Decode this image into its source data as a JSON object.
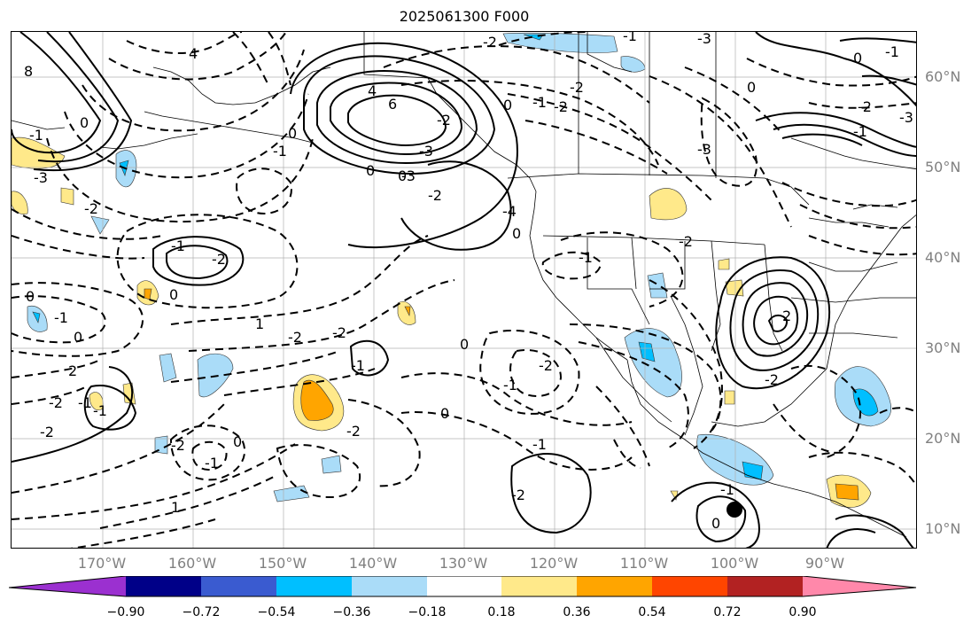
{
  "title": "2025061300 F000",
  "lat_labels": [
    "60°N",
    "50°N",
    "40°N",
    "30°N",
    "20°N",
    "10°N"
  ],
  "lon_labels": [
    "170°W",
    "160°W",
    "150°W",
    "140°W",
    "130°W",
    "120°W",
    "110°W",
    "100°W",
    "90°W"
  ],
  "colorbar": {
    "ticks": [
      "−0.90",
      "−0.72",
      "−0.54",
      "−0.36",
      "−0.18",
      "0.18",
      "0.36",
      "0.54",
      "0.72",
      "0.90"
    ],
    "colors": [
      "#9b30d0",
      "#000088",
      "#3a5bd0",
      "#00bfff",
      "#aadcf8",
      "#ffffff",
      "#ffe98a",
      "#ffa500",
      "#ff4500",
      "#b22222",
      "#ff88aa"
    ],
    "extend": "both"
  },
  "contour_labels": [
    "-2",
    "-3",
    "0",
    "-1",
    "-2",
    "-3",
    "4",
    "6",
    "0",
    "-1",
    "-2",
    "0",
    "-2",
    "-3",
    "-3",
    "4",
    "-1",
    "0",
    "8",
    "-2",
    "-1",
    "-3",
    "-2",
    "-4",
    "-1",
    "0",
    "-3",
    "0",
    "0",
    "-1",
    "-2",
    "0",
    "-1",
    "-2",
    "-1",
    "0",
    "1",
    "-2",
    "-2",
    "2",
    "-1",
    "0",
    "-2",
    "-1",
    "2",
    "-2",
    "-2",
    "-2",
    "-2",
    "0",
    "-1",
    "0",
    "-1",
    "-2",
    "-2",
    "-1",
    "0",
    "1",
    "-1",
    "0",
    "-1",
    "0",
    "-2",
    "-1"
  ],
  "marker": {
    "name": "location-dot"
  }
}
